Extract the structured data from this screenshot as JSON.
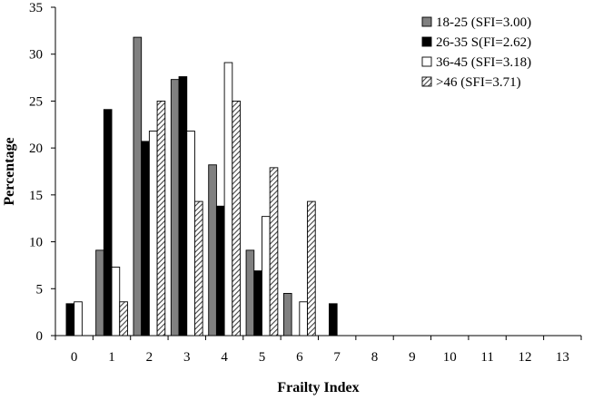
{
  "chart_data": {
    "type": "bar",
    "xlabel": "Frailty Index",
    "ylabel": "Percentage",
    "ylim": [
      0,
      35
    ],
    "yticks": [
      0,
      5,
      10,
      15,
      20,
      25,
      30,
      35
    ],
    "categories": [
      "0",
      "1",
      "2",
      "3",
      "4",
      "5",
      "6",
      "7",
      "8",
      "9",
      "10",
      "11",
      "12",
      "13"
    ],
    "grid": false,
    "legend_position": "top-right",
    "series": [
      {
        "name": "18-25 (SFI=3.00)",
        "fill": "gray",
        "color": "#808080",
        "values": [
          0,
          9.1,
          31.8,
          27.3,
          18.2,
          9.1,
          4.5,
          0,
          0,
          0,
          0,
          0,
          0,
          0
        ]
      },
      {
        "name": "26-35 S(FI=2.62)",
        "fill": "solid",
        "color": "#000000",
        "values": [
          3.4,
          24.1,
          20.7,
          27.6,
          13.8,
          6.9,
          0,
          3.4,
          0,
          0,
          0,
          0,
          0,
          0
        ]
      },
      {
        "name": "36-45 (SFI=3.18)",
        "fill": "white",
        "color": "#ffffff",
        "values": [
          3.6,
          7.3,
          21.8,
          21.8,
          29.1,
          12.7,
          3.6,
          0,
          0,
          0,
          0,
          0,
          0,
          0
        ]
      },
      {
        "name": ">46 (SFI=3.71)",
        "fill": "hatch",
        "color": "#555555",
        "values": [
          0,
          3.6,
          25.0,
          14.3,
          25.0,
          17.9,
          14.3,
          0,
          0,
          0,
          0,
          0,
          0,
          0
        ]
      }
    ]
  }
}
